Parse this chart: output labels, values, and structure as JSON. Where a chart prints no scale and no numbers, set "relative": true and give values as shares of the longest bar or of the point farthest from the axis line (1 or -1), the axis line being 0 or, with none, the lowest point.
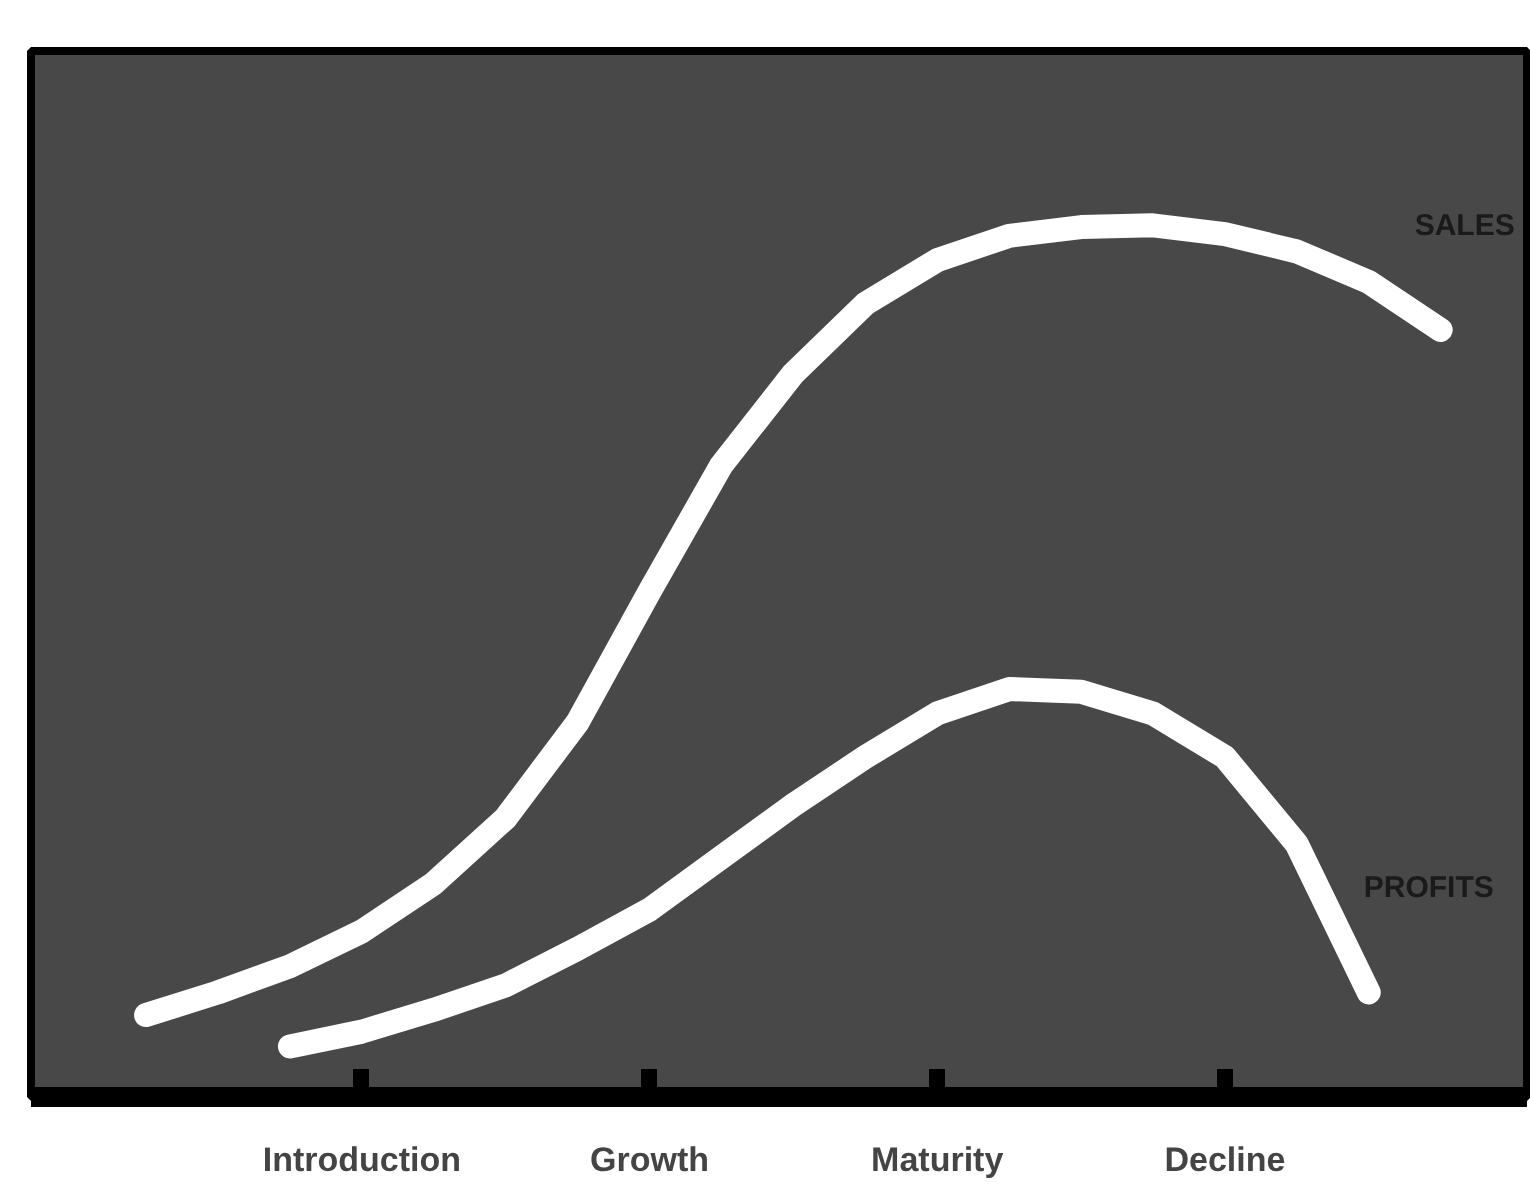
{
  "chart_data": {
    "type": "line",
    "relative": true,
    "grid": false,
    "categories": [
      null,
      null,
      null,
      null,
      "Introduction",
      null,
      null,
      null,
      "Growth",
      null,
      null,
      null,
      "Maturity",
      null,
      null,
      null,
      "Decline",
      null,
      null,
      null,
      null
    ],
    "series": [
      {
        "name": "SALES",
        "color": "#ffffff",
        "values": [
          null,
          0.094,
          0.12,
          0.15,
          0.19,
          0.245,
          0.32,
          0.43,
          0.58,
          0.725,
          0.83,
          0.91,
          0.96,
          0.988,
          0.998,
          1.0,
          0.99,
          0.97,
          0.935,
          0.88,
          null
        ]
      },
      {
        "name": "PROFITS",
        "color": "#ffffff",
        "values": [
          null,
          null,
          null,
          0.058,
          0.075,
          0.1,
          0.128,
          0.17,
          0.215,
          0.275,
          0.335,
          0.39,
          0.44,
          0.468,
          0.465,
          0.44,
          0.39,
          0.29,
          0.12,
          null,
          null
        ]
      }
    ]
  }
}
